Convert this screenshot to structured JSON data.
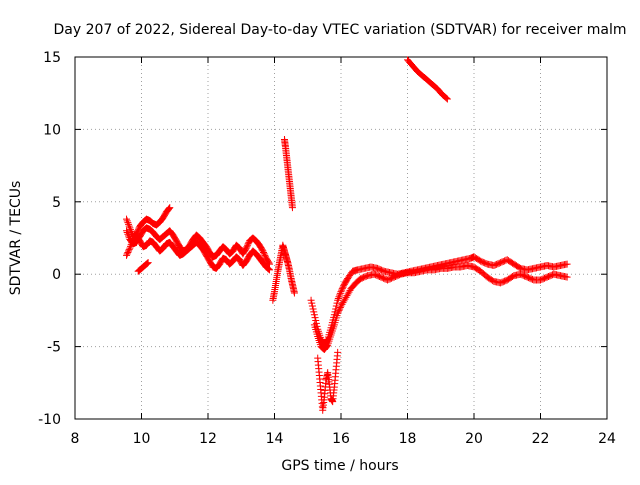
{
  "chart_data": {
    "type": "scatter",
    "title": "Day 207 of 2022, Sidereal Day-to-day VTEC variation (SDTVAR) for receiver malm",
    "xlabel": "GPS time / hours",
    "ylabel": "SDTVAR / TECUs",
    "xlim": [
      8,
      24
    ],
    "ylim": [
      -10,
      15
    ],
    "xticks": [
      "8",
      "10",
      "12",
      "14",
      "16",
      "18",
      "20",
      "22",
      "24"
    ],
    "yticks": [
      "-10",
      "-5",
      "0",
      "5",
      "10",
      "15"
    ],
    "grid": true,
    "marker": "+",
    "series": [
      {
        "name": "SDTVAR",
        "color": "#ff0000",
        "segments": [
          [
            [
              9.55,
              3.8
            ],
            [
              9.65,
              3.2
            ],
            [
              9.75,
              2.6
            ],
            [
              9.85,
              2.8
            ],
            [
              9.95,
              3.3
            ],
            [
              10.05,
              3.6
            ],
            [
              10.15,
              3.8
            ],
            [
              10.25,
              3.7
            ],
            [
              10.35,
              3.5
            ],
            [
              10.45,
              3.4
            ],
            [
              10.55,
              3.6
            ],
            [
              10.65,
              3.9
            ],
            [
              10.75,
              4.3
            ],
            [
              10.85,
              4.6
            ]
          ],
          [
            [
              9.55,
              3.0
            ],
            [
              9.65,
              2.4
            ],
            [
              9.75,
              2.1
            ],
            [
              9.85,
              2.2
            ],
            [
              9.95,
              2.6
            ],
            [
              10.05,
              3.0
            ],
            [
              10.15,
              3.2
            ],
            [
              10.25,
              3.1
            ],
            [
              10.35,
              2.9
            ],
            [
              10.45,
              2.6
            ],
            [
              10.55,
              2.4
            ],
            [
              10.65,
              2.6
            ],
            [
              10.75,
              2.8
            ],
            [
              10.85,
              3.0
            ],
            [
              10.95,
              2.7
            ],
            [
              11.05,
              2.3
            ],
            [
              11.15,
              1.9
            ],
            [
              11.25,
              1.6
            ],
            [
              11.35,
              1.7
            ],
            [
              11.45,
              2.0
            ],
            [
              11.55,
              2.4
            ],
            [
              11.65,
              2.7
            ],
            [
              11.75,
              2.5
            ],
            [
              11.85,
              2.2
            ],
            [
              11.95,
              1.9
            ],
            [
              12.05,
              1.5
            ],
            [
              12.15,
              1.2
            ],
            [
              12.25,
              1.3
            ],
            [
              12.35,
              1.6
            ],
            [
              12.45,
              1.9
            ],
            [
              12.55,
              1.7
            ],
            [
              12.65,
              1.4
            ],
            [
              12.75,
              1.6
            ],
            [
              12.85,
              2.0
            ],
            [
              12.95,
              1.8
            ],
            [
              13.05,
              1.4
            ],
            [
              13.15,
              1.8
            ],
            [
              13.25,
              2.3
            ],
            [
              13.35,
              2.5
            ],
            [
              13.45,
              2.3
            ],
            [
              13.55,
              2.0
            ],
            [
              13.65,
              1.6
            ],
            [
              13.75,
              1.1
            ],
            [
              13.85,
              0.7
            ]
          ],
          [
            [
              9.55,
              1.3
            ],
            [
              9.65,
              1.8
            ],
            [
              9.75,
              2.4
            ],
            [
              9.85,
              2.6
            ],
            [
              9.95,
              2.3
            ],
            [
              10.05,
              1.9
            ],
            [
              10.15,
              2.0
            ],
            [
              10.25,
              2.3
            ],
            [
              10.35,
              2.2
            ],
            [
              10.45,
              1.9
            ],
            [
              10.55,
              1.6
            ],
            [
              10.65,
              1.8
            ],
            [
              10.75,
              2.1
            ],
            [
              10.85,
              2.2
            ],
            [
              10.95,
              1.9
            ],
            [
              11.05,
              1.6
            ],
            [
              11.15,
              1.3
            ],
            [
              11.25,
              1.4
            ],
            [
              11.35,
              1.6
            ],
            [
              11.45,
              1.8
            ],
            [
              11.55,
              2.0
            ],
            [
              11.65,
              2.2
            ],
            [
              11.75,
              2.0
            ],
            [
              11.85,
              1.7
            ],
            [
              11.95,
              1.3
            ],
            [
              12.05,
              0.9
            ],
            [
              12.15,
              0.5
            ],
            [
              12.25,
              0.4
            ],
            [
              12.35,
              0.7
            ],
            [
              12.45,
              1.1
            ],
            [
              12.55,
              1.0
            ],
            [
              12.65,
              0.7
            ],
            [
              12.75,
              0.9
            ],
            [
              12.85,
              1.2
            ],
            [
              12.95,
              1.0
            ],
            [
              13.05,
              0.6
            ],
            [
              13.15,
              0.9
            ],
            [
              13.25,
              1.3
            ],
            [
              13.35,
              1.6
            ],
            [
              13.45,
              1.4
            ],
            [
              13.55,
              1.1
            ],
            [
              13.65,
              0.8
            ],
            [
              13.75,
              0.5
            ],
            [
              13.85,
              0.3
            ]
          ],
          [
            [
              9.9,
              0.2
            ],
            [
              10.0,
              0.4
            ],
            [
              10.1,
              0.6
            ],
            [
              10.2,
              0.8
            ]
          ],
          [
            [
              13.95,
              -1.8
            ],
            [
              14.0,
              -1.2
            ],
            [
              14.05,
              -0.5
            ],
            [
              14.1,
              0.2
            ],
            [
              14.15,
              0.8
            ],
            [
              14.2,
              1.4
            ],
            [
              14.25,
              2.0
            ],
            [
              14.3,
              1.6
            ],
            [
              14.35,
              1.2
            ],
            [
              14.4,
              0.8
            ],
            [
              14.45,
              0.3
            ],
            [
              14.5,
              -0.3
            ],
            [
              14.55,
              -0.8
            ],
            [
              14.6,
              -1.3
            ]
          ],
          [
            [
              14.3,
              9.3
            ],
            [
              14.33,
              8.8
            ],
            [
              14.36,
              8.2
            ],
            [
              14.39,
              7.6
            ],
            [
              14.42,
              7.0
            ],
            [
              14.45,
              6.4
            ],
            [
              14.48,
              5.8
            ],
            [
              14.51,
              5.2
            ],
            [
              14.54,
              4.6
            ]
          ],
          [
            [
              15.1,
              -1.8
            ],
            [
              15.2,
              -2.8
            ],
            [
              15.3,
              -3.8
            ],
            [
              15.4,
              -4.5
            ],
            [
              15.5,
              -4.8
            ],
            [
              15.6,
              -4.5
            ],
            [
              15.7,
              -3.7
            ],
            [
              15.8,
              -2.8
            ],
            [
              15.9,
              -1.8
            ],
            [
              16.0,
              -1.2
            ],
            [
              16.1,
              -0.7
            ],
            [
              16.2,
              -0.3
            ],
            [
              16.35,
              0.2
            ],
            [
              16.5,
              0.3
            ],
            [
              16.7,
              0.4
            ],
            [
              16.9,
              0.5
            ],
            [
              17.1,
              0.4
            ],
            [
              17.3,
              0.2
            ],
            [
              17.5,
              0.1
            ],
            [
              17.7,
              0.0
            ],
            [
              17.9,
              0.1
            ],
            [
              18.1,
              0.2
            ],
            [
              18.3,
              0.3
            ],
            [
              18.5,
              0.4
            ],
            [
              18.7,
              0.5
            ],
            [
              18.9,
              0.6
            ],
            [
              19.1,
              0.7
            ],
            [
              19.3,
              0.8
            ],
            [
              19.5,
              0.9
            ],
            [
              19.7,
              1.0
            ],
            [
              19.9,
              1.1
            ],
            [
              20.0,
              1.2
            ],
            [
              20.2,
              0.9
            ],
            [
              20.4,
              0.7
            ],
            [
              20.6,
              0.6
            ],
            [
              20.8,
              0.8
            ],
            [
              21.0,
              1.0
            ],
            [
              21.2,
              0.7
            ],
            [
              21.4,
              0.4
            ],
            [
              21.6,
              0.3
            ],
            [
              21.8,
              0.4
            ],
            [
              22.0,
              0.5
            ],
            [
              22.2,
              0.6
            ],
            [
              22.4,
              0.5
            ],
            [
              22.6,
              0.6
            ],
            [
              22.8,
              0.7
            ]
          ],
          [
            [
              15.2,
              -3.5
            ],
            [
              15.3,
              -4.3
            ],
            [
              15.4,
              -5.0
            ],
            [
              15.5,
              -5.2
            ],
            [
              15.6,
              -4.9
            ],
            [
              15.7,
              -4.2
            ],
            [
              15.8,
              -3.5
            ],
            [
              15.9,
              -2.7
            ],
            [
              16.0,
              -2.2
            ],
            [
              16.15,
              -1.6
            ],
            [
              16.3,
              -1.0
            ],
            [
              16.45,
              -0.6
            ],
            [
              16.6,
              -0.3
            ],
            [
              16.8,
              -0.1
            ],
            [
              17.0,
              0.0
            ],
            [
              17.2,
              -0.2
            ],
            [
              17.4,
              -0.4
            ],
            [
              17.6,
              -0.2
            ],
            [
              17.8,
              0.0
            ],
            [
              18.0,
              0.1
            ],
            [
              18.2,
              0.1
            ],
            [
              18.4,
              0.2
            ],
            [
              18.6,
              0.3
            ],
            [
              18.8,
              0.3
            ],
            [
              19.0,
              0.4
            ],
            [
              19.2,
              0.4
            ],
            [
              19.4,
              0.5
            ],
            [
              19.6,
              0.5
            ],
            [
              19.8,
              0.6
            ],
            [
              20.0,
              0.5
            ],
            [
              20.2,
              0.2
            ],
            [
              20.4,
              -0.2
            ],
            [
              20.6,
              -0.5
            ],
            [
              20.8,
              -0.6
            ],
            [
              21.0,
              -0.4
            ],
            [
              21.2,
              -0.1
            ],
            [
              21.4,
              0.0
            ],
            [
              21.6,
              -0.2
            ],
            [
              21.8,
              -0.4
            ],
            [
              22.0,
              -0.4
            ],
            [
              22.2,
              -0.2
            ],
            [
              22.4,
              0.0
            ],
            [
              22.6,
              -0.1
            ],
            [
              22.8,
              -0.2
            ]
          ],
          [
            [
              15.3,
              -5.8
            ],
            [
              15.35,
              -7.0
            ],
            [
              15.4,
              -8.2
            ],
            [
              15.45,
              -9.4
            ],
            [
              15.5,
              -8.5
            ],
            [
              15.55,
              -7.3
            ],
            [
              15.6,
              -6.8
            ],
            [
              15.65,
              -7.6
            ],
            [
              15.7,
              -8.6
            ],
            [
              15.75,
              -8.8
            ],
            [
              15.8,
              -7.8
            ],
            [
              15.85,
              -6.6
            ],
            [
              15.9,
              -5.4
            ]
          ],
          [
            [
              18.0,
              14.8
            ],
            [
              18.15,
              14.4
            ],
            [
              18.3,
              14.0
            ],
            [
              18.45,
              13.7
            ],
            [
              18.6,
              13.4
            ],
            [
              18.75,
              13.1
            ],
            [
              18.9,
              12.8
            ],
            [
              19.05,
              12.4
            ],
            [
              19.2,
              12.1
            ]
          ]
        ]
      }
    ]
  }
}
